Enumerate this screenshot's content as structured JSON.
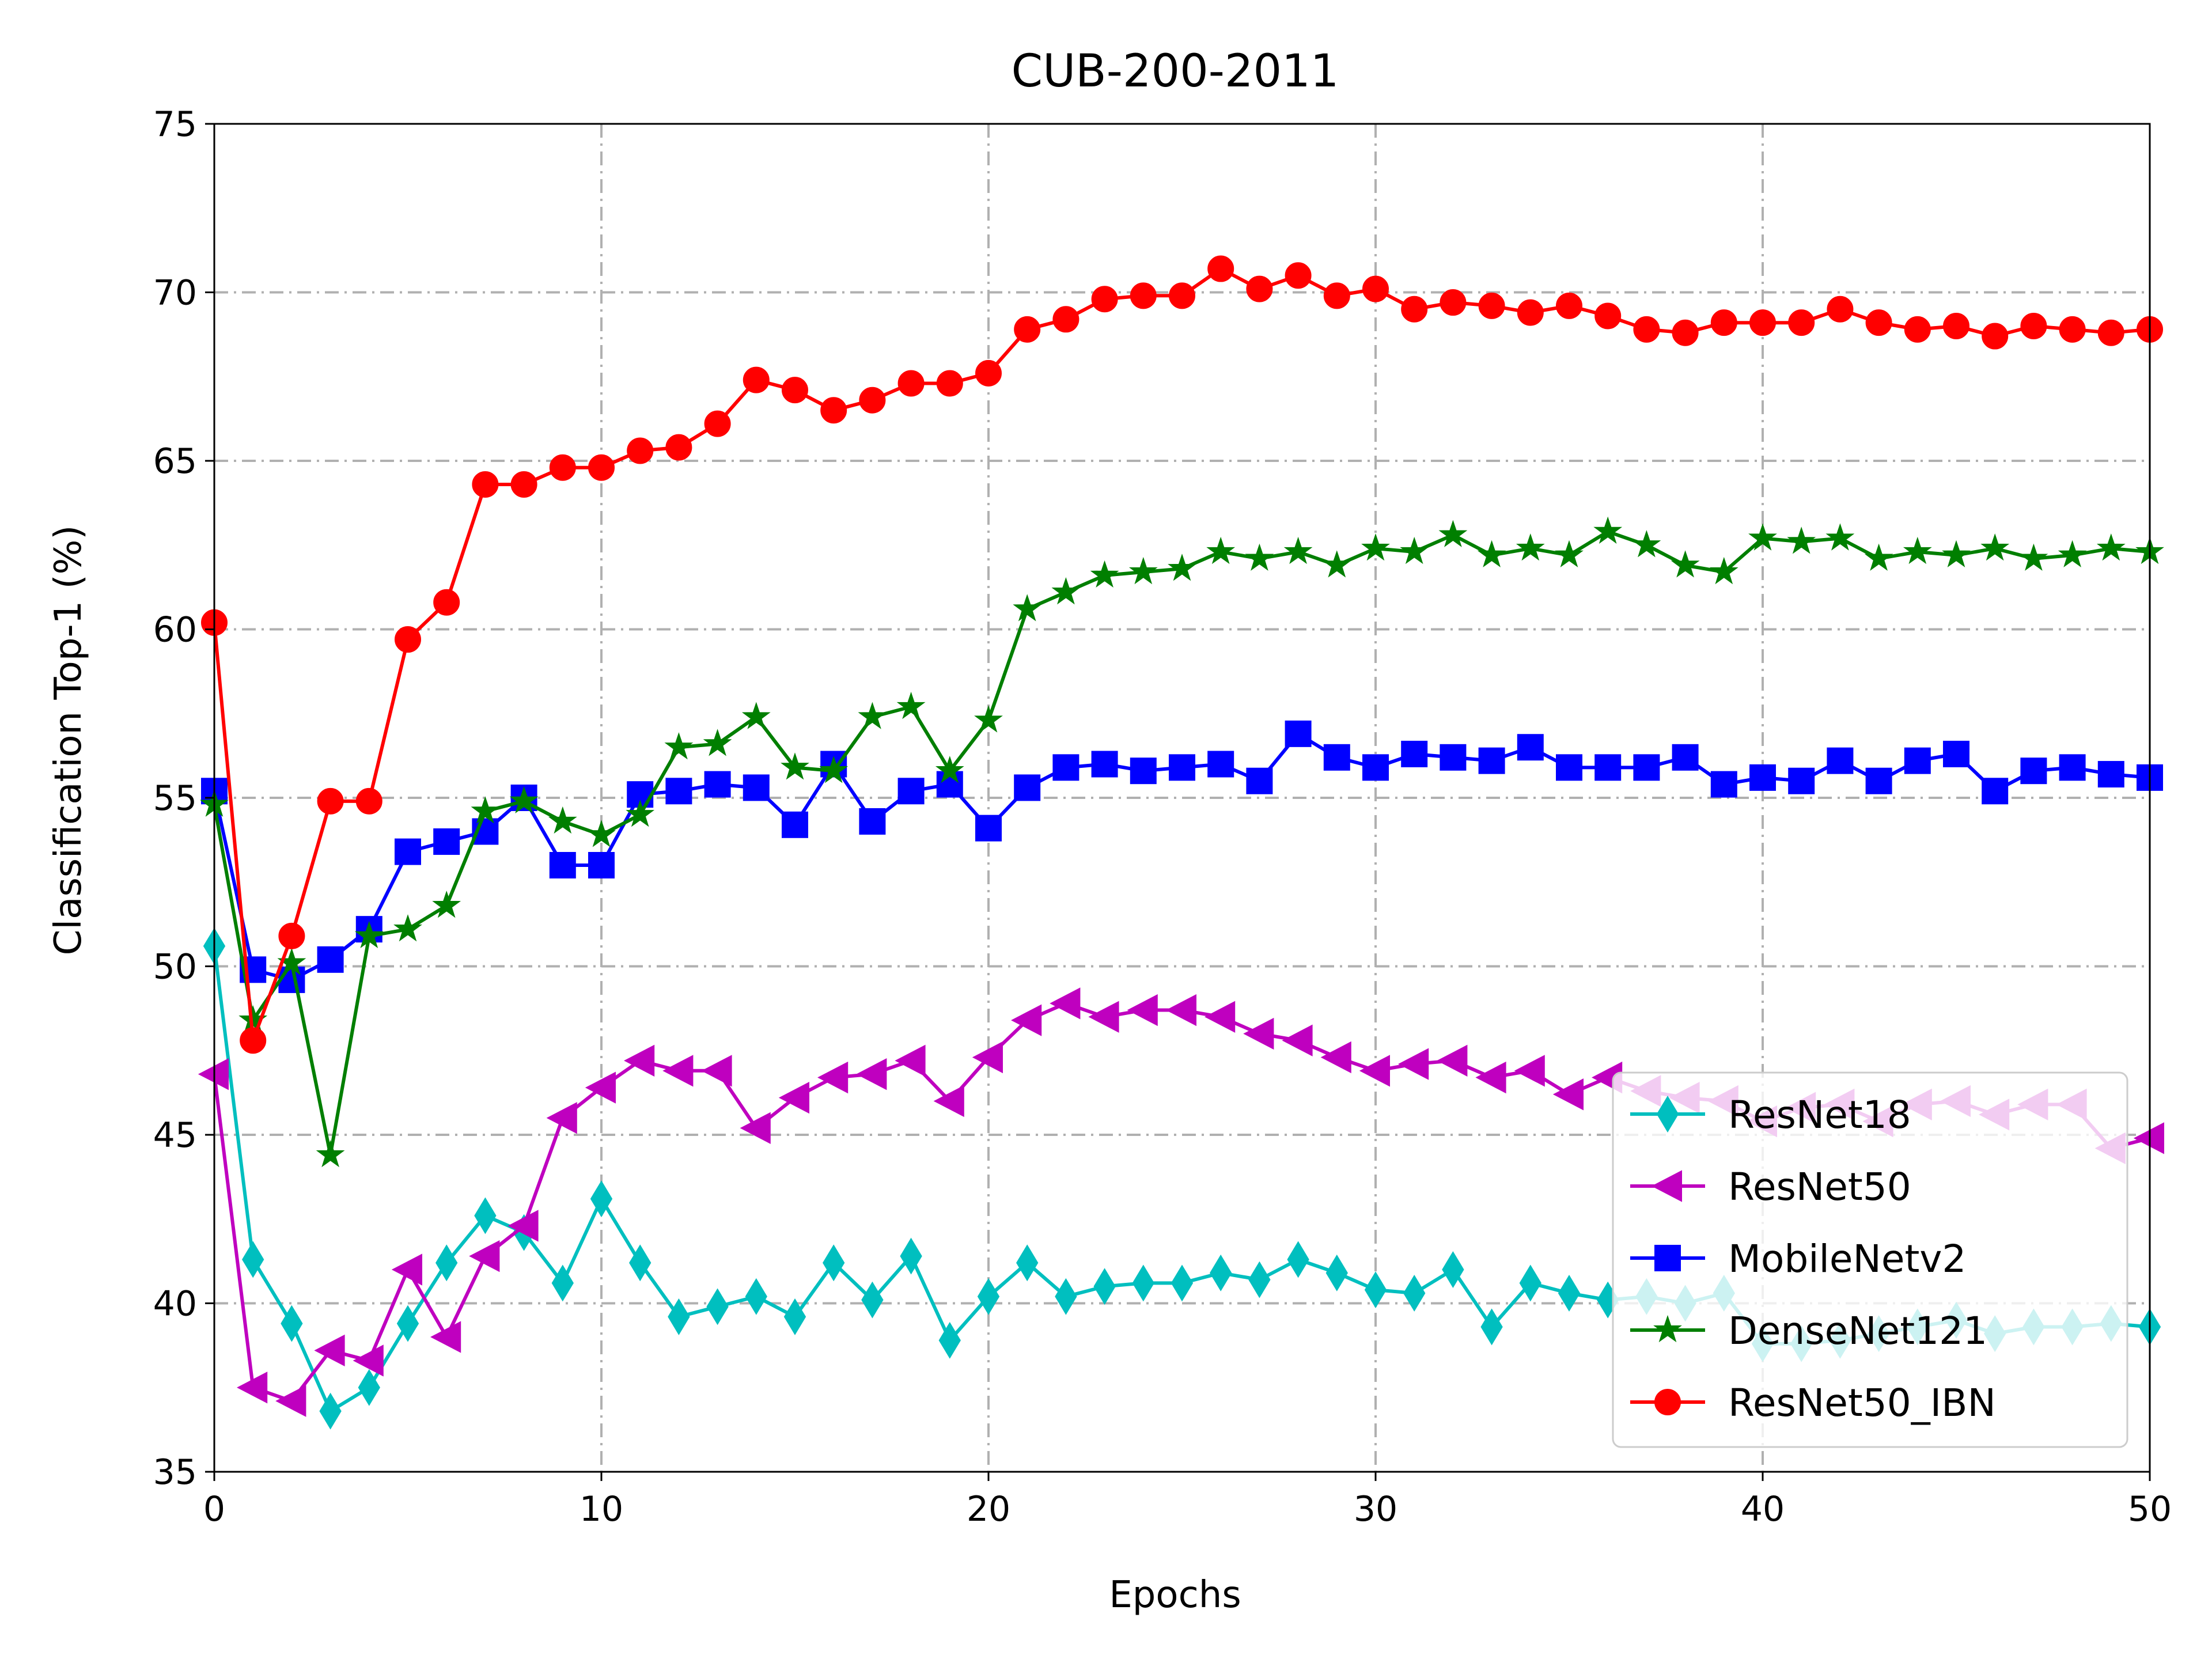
{
  "chart_data": {
    "type": "line",
    "title": "CUB-200-2011",
    "xlabel": "Epochs",
    "ylabel": "Classification Top-1 (%)",
    "xlim": [
      0,
      50
    ],
    "ylim": [
      35,
      75
    ],
    "xticks": [
      "0",
      "10",
      "20",
      "30",
      "40",
      "50"
    ],
    "yticks": [
      "35",
      "40",
      "45",
      "50",
      "55",
      "60",
      "65",
      "70",
      "75"
    ],
    "grid": true,
    "legend_position": "lower-right",
    "x": [
      0,
      1,
      2,
      3,
      4,
      5,
      6,
      7,
      8,
      9,
      10,
      11,
      12,
      13,
      14,
      15,
      16,
      17,
      18,
      19,
      20,
      21,
      22,
      23,
      24,
      25,
      26,
      27,
      28,
      29,
      30,
      31,
      32,
      33,
      34,
      35,
      36,
      37,
      38,
      39,
      40,
      41,
      42,
      43,
      44,
      45,
      46,
      47,
      48,
      49,
      50
    ],
    "series": [
      {
        "name": "ResNet18",
        "color": "#00bfbf",
        "marker": "thin-diamond",
        "values": [
          50.6,
          41.3,
          39.4,
          36.8,
          37.5,
          39.4,
          41.2,
          42.6,
          42.1,
          40.6,
          43.1,
          41.2,
          39.6,
          39.9,
          40.2,
          39.6,
          41.2,
          40.1,
          41.4,
          38.9,
          40.2,
          41.2,
          40.2,
          40.5,
          40.6,
          40.6,
          40.9,
          40.7,
          41.3,
          40.9,
          40.4,
          40.3,
          41.0,
          39.3,
          40.6,
          40.3,
          40.1,
          40.2,
          40.0,
          40.3,
          38.8,
          38.8,
          38.9,
          39.1,
          39.3,
          39.5,
          39.1,
          39.3,
          39.3,
          39.4,
          39.3
        ]
      },
      {
        "name": "ResNet50",
        "color": "#bf00bf",
        "marker": "triangle-left",
        "values": [
          46.8,
          37.5,
          37.1,
          38.6,
          38.3,
          41.0,
          39.0,
          41.4,
          42.3,
          45.5,
          46.4,
          47.2,
          46.9,
          46.9,
          45.2,
          46.1,
          46.7,
          46.8,
          47.2,
          46.0,
          47.3,
          48.4,
          48.9,
          48.5,
          48.7,
          48.7,
          48.5,
          48.0,
          47.8,
          47.3,
          46.9,
          47.1,
          47.2,
          46.7,
          46.9,
          46.2,
          46.7,
          46.3,
          46.1,
          46.0,
          45.4,
          45.8,
          45.9,
          45.4,
          45.9,
          46.0,
          45.6,
          45.9,
          45.9,
          44.6,
          44.9
        ]
      },
      {
        "name": "MobileNetv2",
        "color": "#0000ff",
        "marker": "square",
        "values": [
          55.2,
          49.9,
          49.6,
          50.2,
          51.1,
          53.4,
          53.7,
          54.0,
          55.0,
          53.0,
          53.0,
          55.1,
          55.2,
          55.4,
          55.3,
          54.2,
          56.0,
          54.3,
          55.2,
          55.4,
          54.1,
          55.3,
          55.9,
          56.0,
          55.8,
          55.9,
          56.0,
          55.5,
          56.9,
          56.2,
          55.9,
          56.3,
          56.2,
          56.1,
          56.5,
          55.9,
          55.9,
          55.9,
          56.2,
          55.4,
          55.6,
          55.5,
          56.1,
          55.5,
          56.1,
          56.3,
          55.2,
          55.8,
          55.9,
          55.7,
          55.6
        ]
      },
      {
        "name": "DenseNet121",
        "color": "#007f00",
        "marker": "star",
        "values": [
          54.8,
          48.4,
          50.1,
          44.4,
          50.9,
          51.1,
          51.8,
          54.6,
          54.9,
          54.3,
          53.9,
          54.5,
          56.5,
          56.6,
          57.4,
          55.9,
          55.8,
          57.4,
          57.7,
          55.8,
          57.3,
          60.6,
          61.1,
          61.6,
          61.7,
          61.8,
          62.3,
          62.1,
          62.3,
          61.9,
          62.4,
          62.3,
          62.8,
          62.2,
          62.4,
          62.2,
          62.9,
          62.5,
          61.9,
          61.7,
          62.7,
          62.6,
          62.7,
          62.1,
          62.3,
          62.2,
          62.4,
          62.1,
          62.2,
          62.4,
          62.3
        ]
      },
      {
        "name": "ResNet50_IBN",
        "color": "#ff0000",
        "marker": "circle",
        "values": [
          60.2,
          47.8,
          50.9,
          54.9,
          54.9,
          59.7,
          60.8,
          64.3,
          64.3,
          64.8,
          64.8,
          65.3,
          65.4,
          66.1,
          67.4,
          67.1,
          66.5,
          66.8,
          67.3,
          67.3,
          67.6,
          68.9,
          69.2,
          69.8,
          69.9,
          69.9,
          70.7,
          70.1,
          70.5,
          69.9,
          70.1,
          69.5,
          69.7,
          69.6,
          69.4,
          69.6,
          69.3,
          68.9,
          68.8,
          69.1,
          69.1,
          69.1,
          69.5,
          69.1,
          68.9,
          69.0,
          68.7,
          69.0,
          68.9,
          68.8,
          68.9
        ]
      }
    ]
  }
}
